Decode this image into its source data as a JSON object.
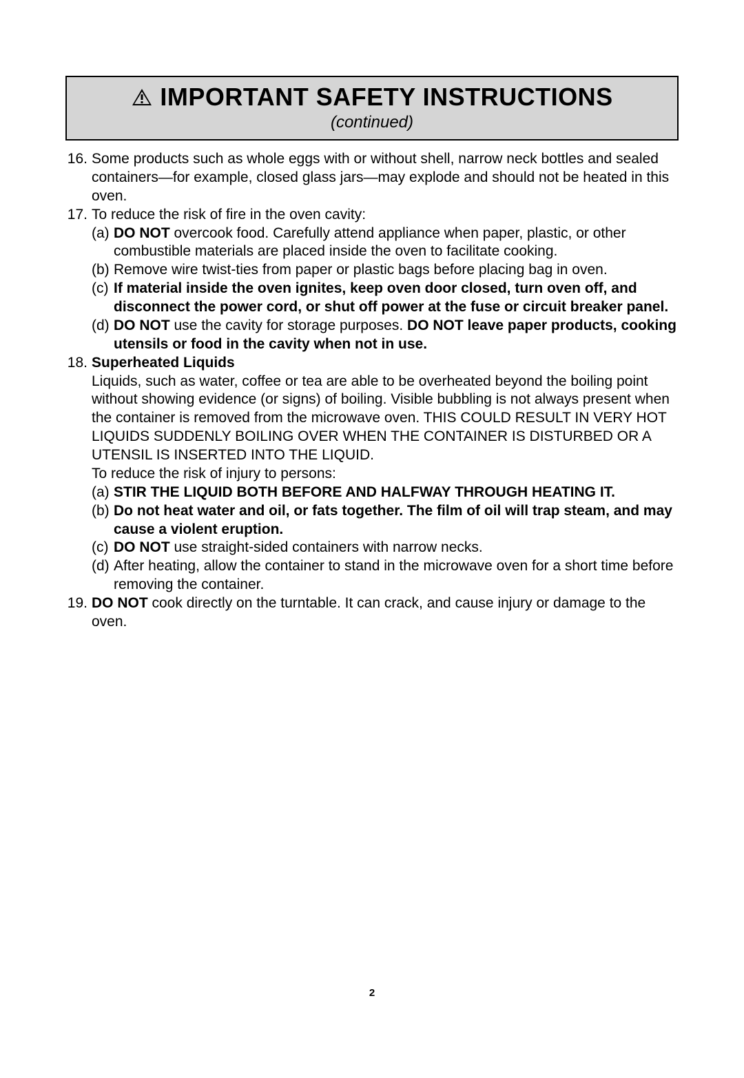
{
  "header": {
    "title": "IMPORTANT SAFETY INSTRUCTIONS",
    "subtitle": "(continued)"
  },
  "items": [
    {
      "number": "16.",
      "text": "Some products such as whole eggs with or without shell, narrow neck bottles and sealed containers—for example, closed glass jars—may explode and should not be heated in this oven."
    },
    {
      "number": "17.",
      "intro": "To reduce the risk of fire in the oven cavity:",
      "subs": [
        {
          "marker": "(a)",
          "runs": [
            {
              "text": "DO NOT",
              "bold": true
            },
            {
              "text": " overcook food. Carefully attend appliance when paper, plastic, or other combustible materials are placed inside the oven to facilitate cooking.",
              "bold": false
            }
          ]
        },
        {
          "marker": "(b)",
          "runs": [
            {
              "text": "Remove wire twist-ties from paper or plastic bags before placing bag in oven.",
              "bold": false
            }
          ]
        },
        {
          "marker": "(c)",
          "runs": [
            {
              "text": "If material inside the oven ignites, keep oven door closed, turn oven off,  and disconnect the power cord, or shut off power at the fuse or circuit breaker panel.",
              "bold": true
            }
          ]
        },
        {
          "marker": "(d)",
          "runs": [
            {
              "text": "DO NOT",
              "bold": true
            },
            {
              "text": " use the cavity for storage purposes. ",
              "bold": false
            },
            {
              "text": "DO NOT leave paper products, cooking utensils or food in the cavity when not in use.",
              "bold": true
            }
          ]
        }
      ]
    },
    {
      "number": "18.",
      "heading": "Superheated Liquids",
      "paragraph": "Liquids, such as water, coffee or tea are able to be overheated beyond the boiling point without showing evidence (or signs) of boiling. Visible bubbling is not always present when the container is removed from the microwave oven. THIS COULD RESULT IN VERY HOT LIQUIDS SUDDENLY BOILING OVER WHEN THE CONTAINER IS DISTURBED OR A UTENSIL IS INSERTED INTO THE LIQUID.",
      "lead": "To reduce the risk of injury to persons:",
      "subs": [
        {
          "marker": "(a)",
          "runs": [
            {
              "text": "STIR THE LIQUID BOTH BEFORE AND HALFWAY THROUGH HEATING IT.",
              "bold": true
            }
          ]
        },
        {
          "marker": "(b)",
          "runs": [
            {
              "text": "Do not heat water and oil, or fats together. The film of oil will trap steam, and may cause a violent eruption.",
              "bold": true
            }
          ]
        },
        {
          "marker": "(c)",
          "runs": [
            {
              "text": "DO NOT",
              "bold": true
            },
            {
              "text": " use straight-sided containers with narrow necks.",
              "bold": false
            }
          ]
        },
        {
          "marker": "(d)",
          "runs": [
            {
              "text": "After heating, allow the container to stand in the microwave oven for a short time before removing the container.",
              "bold": false
            }
          ]
        }
      ]
    },
    {
      "number": "19.",
      "runs": [
        {
          "text": "DO NOT",
          "bold": true
        },
        {
          "text": " cook directly on the turntable. It can crack, and cause injury or damage to the oven.",
          "bold": false
        }
      ]
    }
  ],
  "page_number": "2"
}
